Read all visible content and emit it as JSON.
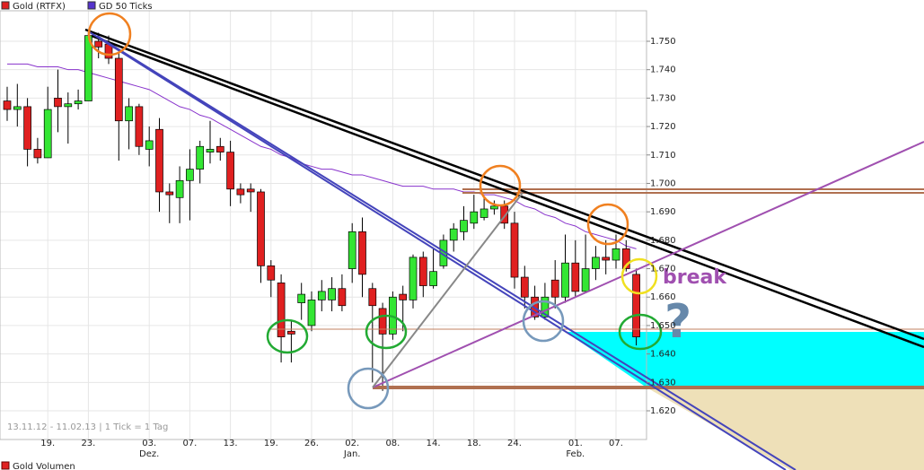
{
  "chart_data": {
    "type": "candlestick",
    "legend_items": [
      {
        "name": "Gold (RTFX)",
        "color": "#e02020"
      },
      {
        "name": "GD 50 Ticks",
        "color": "#5533cc"
      }
    ],
    "footnote": "13.11.12 - 11.02.13 | 1 Tick = 1 Tag",
    "subpanel_title": "Gold Volumen",
    "annotations": [
      "break",
      "?"
    ],
    "categories": [
      null,
      null,
      null,
      null,
      "19.",
      null,
      null,
      null,
      "23.",
      null,
      null,
      null,
      null,
      null,
      "03.",
      null,
      null,
      null,
      "07.",
      null,
      null,
      null,
      "13.",
      null,
      null,
      null,
      "19.",
      null,
      null,
      null,
      "26.",
      null,
      null,
      null,
      "02.",
      null,
      null,
      null,
      "08.",
      null,
      null,
      null,
      "14.",
      null,
      null,
      null,
      "18.",
      null,
      null,
      null,
      "24.",
      null,
      null,
      null,
      null,
      null,
      "01.",
      null,
      null,
      null,
      "07.",
      null,
      null
    ],
    "months": [
      "Dez.",
      "Jan.",
      "Feb."
    ],
    "series": [
      {
        "name": "Gold (RTFX)",
        "up_color": "#33e633",
        "down_color": "#e02020",
        "open": [
          1729,
          1726,
          1727,
          1712,
          1709,
          1730,
          1727,
          1728,
          1729,
          1750,
          1749,
          1744,
          1722,
          1727,
          1712,
          1719,
          1697,
          1695,
          1701,
          1705,
          1711,
          1713,
          1711,
          1698,
          1698,
          1697,
          1671,
          1665,
          1648,
          1658,
          1650,
          1659,
          1659,
          1663,
          1670,
          1683,
          1663,
          1656,
          1647,
          1661,
          1659,
          1674,
          1664,
          1671,
          1680,
          1683,
          1686,
          1688,
          1691,
          1692,
          1686,
          1667,
          1660,
          1653,
          1666,
          1660,
          1672,
          1662,
          1670,
          1674,
          1673,
          1677,
          1668
        ],
        "high": [
          1734,
          1735,
          1730,
          1716,
          1734,
          1740,
          1732,
          1733,
          1754,
          1753,
          1752,
          1746,
          1730,
          1728,
          1720,
          1723,
          1700,
          1706,
          1712,
          1715,
          1722,
          1716,
          1715,
          1700,
          1700,
          1698,
          1673,
          1668,
          1652,
          1665,
          1662,
          1666,
          1667,
          1668,
          1686,
          1688,
          1665,
          1658,
          1662,
          1664,
          1675,
          1676,
          1677,
          1682,
          1686,
          1692,
          1696,
          1695,
          1694,
          1694,
          1690,
          1671,
          1664,
          1665,
          1673,
          1682,
          1680,
          1682,
          1678,
          1680,
          1682,
          1680,
          1670
        ],
        "low": [
          1722,
          1720,
          1706,
          1707,
          1709,
          1718,
          1714,
          1726,
          1729,
          1744,
          1742,
          1708,
          1712,
          1710,
          1706,
          1690,
          1686,
          1686,
          1687,
          1700,
          1707,
          1708,
          1692,
          1693,
          1690,
          1665,
          1660,
          1637,
          1637,
          1652,
          1648,
          1655,
          1655,
          1655,
          1665,
          1660,
          1630,
          1627,
          1645,
          1648,
          1656,
          1660,
          1663,
          1670,
          1676,
          1680,
          1684,
          1687,
          1689,
          1684,
          1663,
          1656,
          1652,
          1652,
          1656,
          1658,
          1660,
          1662,
          1666,
          1668,
          1670,
          1669,
          1643
        ],
        "close": [
          1726,
          1727,
          1712,
          1709,
          1726,
          1727,
          1728,
          1729,
          1752,
          1748,
          1744,
          1722,
          1727,
          1713,
          1715,
          1697,
          1696,
          1701,
          1705,
          1713,
          1712,
          1711,
          1698,
          1696,
          1697,
          1671,
          1666,
          1646,
          1647,
          1661,
          1659,
          1662,
          1663,
          1657,
          1683,
          1668,
          1657,
          1647,
          1660,
          1659,
          1674,
          1664,
          1669,
          1680,
          1684,
          1687,
          1690,
          1691,
          1692,
          1686,
          1667,
          1660,
          1653,
          1660,
          1660,
          1672,
          1662,
          1670,
          1674,
          1673,
          1677,
          1670,
          1646
        ]
      },
      {
        "name": "GD 50 Ticks",
        "type": "line",
        "color": "#8833cc",
        "values": [
          1742,
          1742,
          1742,
          1741,
          1741,
          1741,
          1740,
          1740,
          1739,
          1738,
          1737,
          1736,
          1735,
          1734,
          1733,
          1731,
          1729,
          1727,
          1726,
          1724,
          1723,
          1721,
          1719,
          1717,
          1715,
          1713,
          1712,
          1710,
          1709,
          1707,
          1706,
          1705,
          1705,
          1704,
          1703,
          1703,
          1702,
          1701,
          1700,
          1699,
          1699,
          1699,
          1698,
          1698,
          1698,
          1697,
          1697,
          1696,
          1696,
          1695,
          1694,
          1692,
          1691,
          1689,
          1688,
          1686,
          1685,
          1683,
          1682,
          1681,
          1680,
          1678,
          1677
        ]
      }
    ],
    "ylim": [
      1610,
      1760
    ],
    "yticks": [
      {
        "value": 1620,
        "label": "1.620"
      },
      {
        "value": 1630,
        "label": "1.630"
      },
      {
        "value": 1640,
        "label": "1.640"
      },
      {
        "value": 1650,
        "label": "1.650"
      },
      {
        "value": 1660,
        "label": "1.660"
      },
      {
        "value": 1670,
        "label": "1.670"
      },
      {
        "value": 1680,
        "label": "1.680"
      },
      {
        "value": 1690,
        "label": "1.690"
      },
      {
        "value": 1700,
        "label": "1.700"
      },
      {
        "value": 1710,
        "label": "1.710"
      },
      {
        "value": 1720,
        "label": "1.720"
      },
      {
        "value": 1730,
        "label": "1.730"
      },
      {
        "value": 1740,
        "label": "1.740"
      },
      {
        "value": 1750,
        "label": "1.750"
      }
    ],
    "grid": true
  }
}
